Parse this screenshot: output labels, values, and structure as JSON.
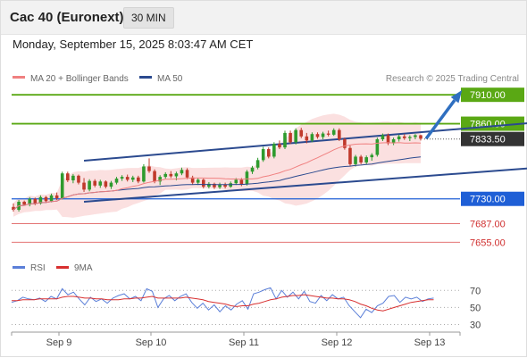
{
  "header": {
    "title": "Cac 40 (Euronext)",
    "timeframe": "30 MIN"
  },
  "datetime": "Monday, September 15, 2025 8:03:47 AM CET",
  "legend": {
    "ma20": "MA 20 + Bollinger Bands",
    "ma50": "MA 50"
  },
  "copyright": "Research © 2025 Trading Central",
  "colors": {
    "up": "#2e9b2e",
    "down": "#c0392b",
    "ma20": "#f08080",
    "ma50": "#2b4a8f",
    "band_fill": "#fbe0e0",
    "resistance": "#5aa814",
    "support": "#1f5fd6",
    "support_minor": "#e06060",
    "channel": "#2b4a8f",
    "arrow": "#2f6fc0",
    "last": "#333333",
    "rsi": "#5b7fd8",
    "rsi_ma": "#d83030"
  },
  "chart_data": [
    {
      "type": "candlestick",
      "title": "",
      "x_tick_labels": [
        "Sep 9",
        "Sep 10",
        "Sep 11",
        "Sep 12",
        "Sep 13"
      ],
      "ylim": [
        7640,
        7918
      ],
      "last_price": 7833.5,
      "ohlc_approx": [
        [
          7716,
          7722,
          7708,
          7711
        ],
        [
          7711,
          7728,
          7708,
          7725
        ],
        [
          7725,
          7727,
          7718,
          7720
        ],
        [
          7720,
          7733,
          7717,
          7730
        ],
        [
          7730,
          7732,
          7719,
          7722
        ],
        [
          7722,
          7736,
          7720,
          7733
        ],
        [
          7733,
          7735,
          7723,
          7726
        ],
        [
          7726,
          7739,
          7724,
          7736
        ],
        [
          7736,
          7741,
          7728,
          7731
        ],
        [
          7731,
          7777,
          7729,
          7774
        ],
        [
          7774,
          7777,
          7759,
          7762
        ],
        [
          7762,
          7773,
          7757,
          7770
        ],
        [
          7770,
          7772,
          7755,
          7758
        ],
        [
          7758,
          7766,
          7742,
          7746
        ],
        [
          7746,
          7764,
          7743,
          7761
        ],
        [
          7761,
          7764,
          7750,
          7753
        ],
        [
          7753,
          7763,
          7749,
          7760
        ],
        [
          7760,
          7762,
          7748,
          7751
        ],
        [
          7751,
          7761,
          7747,
          7758
        ],
        [
          7758,
          7768,
          7755,
          7765
        ],
        [
          7765,
          7771,
          7761,
          7768
        ],
        [
          7768,
          7772,
          7760,
          7763
        ],
        [
          7763,
          7770,
          7759,
          7767
        ],
        [
          7767,
          7770,
          7757,
          7760
        ],
        [
          7760,
          7790,
          7758,
          7786
        ],
        [
          7786,
          7800,
          7775,
          7778
        ],
        [
          7778,
          7781,
          7757,
          7760
        ],
        [
          7760,
          7771,
          7754,
          7768
        ],
        [
          7768,
          7776,
          7765,
          7773
        ],
        [
          7773,
          7778,
          7766,
          7769
        ],
        [
          7769,
          7777,
          7762,
          7774
        ],
        [
          7774,
          7784,
          7771,
          7780
        ],
        [
          7780,
          7783,
          7764,
          7767
        ],
        [
          7767,
          7770,
          7755,
          7758
        ],
        [
          7758,
          7766,
          7754,
          7763
        ],
        [
          7763,
          7765,
          7748,
          7751
        ],
        [
          7751,
          7759,
          7748,
          7756
        ],
        [
          7756,
          7758,
          7747,
          7750
        ],
        [
          7750,
          7758,
          7747,
          7755
        ],
        [
          7755,
          7758,
          7748,
          7751
        ],
        [
          7751,
          7760,
          7749,
          7757
        ],
        [
          7757,
          7766,
          7754,
          7763
        ],
        [
          7763,
          7766,
          7752,
          7755
        ],
        [
          7755,
          7780,
          7753,
          7777
        ],
        [
          7777,
          7787,
          7773,
          7784
        ],
        [
          7784,
          7801,
          7781,
          7797
        ],
        [
          7797,
          7820,
          7794,
          7816
        ],
        [
          7816,
          7819,
          7800,
          7803
        ],
        [
          7803,
          7828,
          7800,
          7825
        ],
        [
          7825,
          7831,
          7816,
          7819
        ],
        [
          7819,
          7848,
          7816,
          7844
        ],
        [
          7844,
          7848,
          7825,
          7828
        ],
        [
          7828,
          7852,
          7824,
          7849
        ],
        [
          7849,
          7853,
          7835,
          7838
        ],
        [
          7838,
          7844,
          7826,
          7831
        ],
        [
          7831,
          7845,
          7828,
          7842
        ],
        [
          7842,
          7845,
          7834,
          7837
        ],
        [
          7837,
          7846,
          7833,
          7843
        ],
        [
          7843,
          7848,
          7838,
          7841
        ],
        [
          7841,
          7852,
          7839,
          7849
        ],
        [
          7849,
          7852,
          7830,
          7833
        ],
        [
          7833,
          7836,
          7815,
          7818
        ],
        [
          7818,
          7822,
          7787,
          7790
        ],
        [
          7790,
          7806,
          7786,
          7803
        ],
        [
          7803,
          7806,
          7790,
          7793
        ],
        [
          7793,
          7805,
          7789,
          7802
        ],
        [
          7802,
          7809,
          7796,
          7806
        ],
        [
          7806,
          7836,
          7803,
          7833
        ],
        [
          7833,
          7843,
          7830,
          7840
        ],
        [
          7840,
          7843,
          7823,
          7826
        ],
        [
          7826,
          7836,
          7823,
          7833
        ],
        [
          7833,
          7841,
          7829,
          7838
        ],
        [
          7838,
          7842,
          7832,
          7835
        ],
        [
          7835,
          7840,
          7830,
          7837
        ],
        [
          7837,
          7842,
          7833,
          7840
        ],
        [
          7840,
          7841,
          7831,
          7834
        ]
      ],
      "indicators": [
        {
          "name": "MA 20 + Bollinger Bands",
          "color": "#f08080"
        },
        {
          "name": "MA 50",
          "color": "#2b4a8f"
        }
      ],
      "levels": [
        {
          "value": 7910.0,
          "label": "7910.00",
          "kind": "resistance"
        },
        {
          "value": 7860.0,
          "label": "7860.00",
          "kind": "resistance"
        },
        {
          "value": 7730.0,
          "label": "7730.00",
          "kind": "support"
        },
        {
          "value": 7687.0,
          "label": "7687.00",
          "kind": "support_minor"
        },
        {
          "value": 7655.0,
          "label": "7655.00",
          "kind": "support_minor"
        }
      ],
      "channel": {
        "upper": [
          {
            "bar": 13,
            "value": 7796
          },
          {
            "bar": 105,
            "value": 7869
          }
        ],
        "lower": [
          {
            "bar": 13,
            "value": 7725
          },
          {
            "bar": 105,
            "value": 7790
          }
        ]
      },
      "projection_target": 7910.0
    },
    {
      "type": "line",
      "title": "",
      "legend": [
        "RSI",
        "9MA"
      ],
      "ylim": [
        20,
        85
      ],
      "y_ticks": [
        70,
        50,
        30
      ],
      "rsi_approx": [
        56,
        58,
        62,
        60,
        59,
        61,
        57,
        63,
        60,
        72,
        65,
        68,
        60,
        53,
        62,
        57,
        60,
        55,
        61,
        64,
        66,
        60,
        63,
        58,
        72,
        69,
        50,
        60,
        64,
        58,
        63,
        66,
        56,
        49,
        55,
        47,
        53,
        45,
        52,
        47,
        54,
        58,
        48,
        66,
        68,
        71,
        73,
        60,
        70,
        62,
        68,
        60,
        69,
        57,
        55,
        64,
        58,
        65,
        60,
        62,
        52,
        45,
        38,
        48,
        44,
        52,
        55,
        63,
        64,
        56,
        62,
        60,
        62,
        57,
        60,
        61
      ],
      "rsi_ma_approx": [
        58,
        58,
        59,
        59,
        59,
        60,
        60,
        60,
        60,
        62,
        63,
        63,
        62,
        61,
        61,
        60,
        60,
        59,
        59,
        59,
        60,
        60,
        61,
        61,
        62,
        63,
        61,
        61,
        61,
        61,
        61,
        62,
        61,
        60,
        59,
        57,
        56,
        55,
        54,
        52,
        51,
        52,
        52,
        54,
        55,
        57,
        59,
        60,
        62,
        63,
        64,
        64,
        65,
        64,
        63,
        62,
        61,
        61,
        60,
        60,
        59,
        57,
        54,
        52,
        49,
        47,
        46,
        48,
        50,
        52,
        54,
        56,
        57,
        58,
        59,
        59
      ]
    }
  ]
}
